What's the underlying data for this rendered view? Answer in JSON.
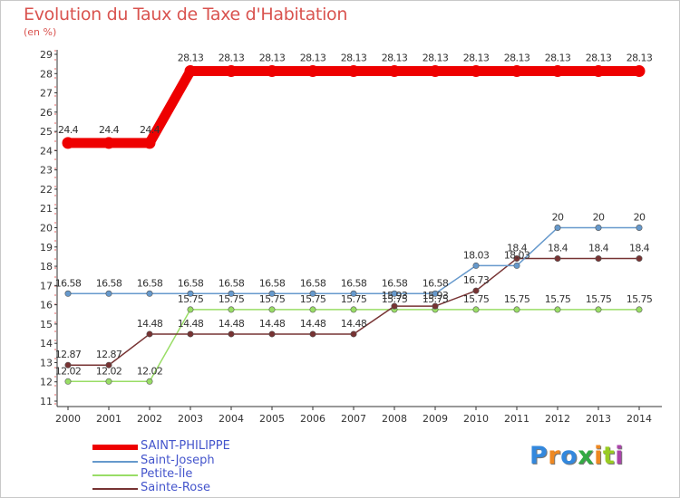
{
  "chart_data": {
    "type": "line",
    "title": "Evolution du Taux de Taxe d'Habitation",
    "unit_label": "(en %)",
    "xlabel": "",
    "ylabel": "",
    "x": [
      "2000",
      "2001",
      "2002",
      "2003",
      "2004",
      "2005",
      "2006",
      "2007",
      "2008",
      "2009",
      "2010",
      "2011",
      "2012",
      "2013",
      "2014"
    ],
    "ylim": [
      11,
      29
    ],
    "yticks": [
      "11",
      "12",
      "13",
      "14",
      "15",
      "16",
      "17",
      "18",
      "19",
      "20",
      "21",
      "22",
      "23",
      "24",
      "25",
      "26",
      "27",
      "28",
      "29"
    ],
    "grid": false,
    "legend_position": "bottom-left",
    "series": [
      {
        "name": "SAINT-PHILIPPE",
        "color": "#ee0000",
        "values": [
          24.4,
          24.4,
          24.4,
          28.13,
          28.13,
          28.13,
          28.13,
          28.13,
          28.13,
          28.13,
          28.13,
          28.13,
          28.13,
          28.13,
          28.13
        ],
        "labels": [
          "24.4",
          "24.4",
          "24.4",
          "28.13",
          "28.13",
          "28.13",
          "28.13",
          "28.13",
          "28.13",
          "28.13",
          "28.13",
          "28.13",
          "28.13",
          "28.13",
          "28.13"
        ]
      },
      {
        "name": "Saint-Joseph",
        "color": "#6699cc",
        "values": [
          16.58,
          16.58,
          16.58,
          16.58,
          16.58,
          16.58,
          16.58,
          16.58,
          16.58,
          16.58,
          18.03,
          18.03,
          20,
          20,
          20
        ],
        "labels": [
          "16.58",
          "16.58",
          "16.58",
          "16.58",
          "16.58",
          "16.58",
          "16.58",
          "16.58",
          "16.58",
          "16.58",
          "18.03",
          "18.03",
          "20",
          "20",
          "20"
        ]
      },
      {
        "name": "Petite-Île",
        "color": "#99dd66",
        "values": [
          12.02,
          12.02,
          12.02,
          15.75,
          15.75,
          15.75,
          15.75,
          15.75,
          15.75,
          15.75,
          15.75,
          15.75,
          15.75,
          15.75,
          15.75
        ],
        "labels": [
          "12.02",
          "12.02",
          "12.02",
          "15.75",
          "15.75",
          "15.75",
          "15.75",
          "15.75",
          "15.75",
          "15.75",
          "15.75",
          "15.75",
          "15.75",
          "15.75",
          "15.75"
        ]
      },
      {
        "name": "Sainte-Rose",
        "color": "#773333",
        "values": [
          12.87,
          12.87,
          14.48,
          14.48,
          14.48,
          14.48,
          14.48,
          14.48,
          15.93,
          15.93,
          16.73,
          18.4,
          18.4,
          18.4,
          18.4
        ],
        "labels": [
          "12.87",
          "12.87",
          "14.48",
          "14.48",
          "14.48",
          "14.48",
          "14.48",
          "14.48",
          "15.93",
          "15.93",
          "16.73",
          "18.4",
          "18.4",
          "18.4",
          "18.4"
        ]
      }
    ]
  },
  "logo": {
    "letters": [
      "P",
      "r",
      "o",
      "x",
      "i",
      "t",
      "i"
    ],
    "colors": [
      "#3388dd",
      "#ee8822",
      "#3388dd",
      "#33aa44",
      "#ee8822",
      "#99cc22",
      "#aa44aa"
    ]
  }
}
